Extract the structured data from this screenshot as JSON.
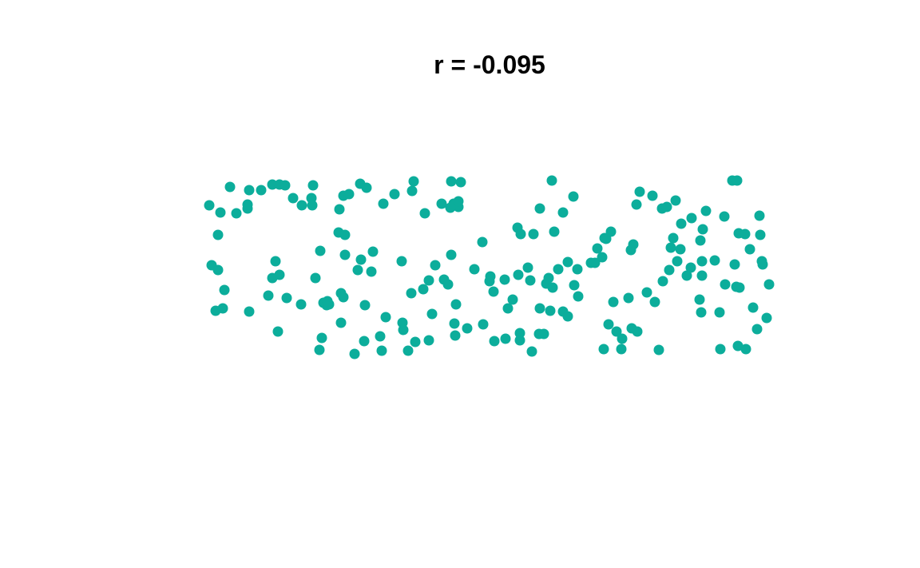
{
  "chart_data": {
    "type": "scatter",
    "title": "r = -0.095",
    "color": "#0cad9b",
    "x": [
      27,
      41,
      53,
      61,
      75,
      77,
      75,
      92,
      106,
      115,
      122,
      132,
      143,
      155,
      157,
      156,
      190,
      195,
      202,
      216,
      224,
      245,
      259,
      281,
      283,
      297,
      318,
      330,
      342,
      333,
      339,
      329,
      339,
      38,
      30,
      38,
      46,
      35,
      44,
      77,
      113,
      110,
      106,
      115,
      101,
      124,
      142,
      160,
      166,
      170,
      174,
      177,
      175,
      168,
      165,
      189,
      197,
      197,
      192,
      195,
      213,
      217,
      232,
      230,
      222,
      192,
      209,
      221,
      241,
      243,
      248,
      269,
      270,
      268,
      276,
      280,
      285,
      302,
      295,
      302,
      310,
      306,
      321,
      326,
      330,
      336,
      334,
      335,
      350,
      359,
      369,
      370,
      379,
      378,
      383,
      384,
      398,
      401,
      407,
      397,
      413,
      417,
      416,
      416,
      414,
      426,
      429,
      431,
      433,
      440,
      446,
      441,
      441,
      449,
      452,
      454,
      456,
      459,
      457,
      464,
      470,
      476,
      470,
      476,
      483,
      484,
      489,
      488,
      505,
      513,
      510,
      519,
      522,
      524,
      530,
      521,
      527,
      533,
      537,
      543,
      544,
      552,
      555,
      558,
      556,
      563,
      562,
      566,
      575,
      582,
      585,
      590,
      594,
      600,
      595,
      603,
      605,
      608,
      611,
      613,
      617,
      618,
      625,
      631,
      630,
      642,
      645,
      644,
      644,
      641,
      643,
      649,
      660,
      666,
      667,
      672,
      673,
      682,
      688,
      685,
      687,
      690,
      691,
      689,
      699,
      698,
      704,
      708,
      713,
      716,
      717,
      719,
      720,
      725,
      728
    ],
    "y": [
      331,
      322,
      354,
      321,
      327,
      350,
      332,
      350,
      357,
      357,
      356,
      340,
      331,
      340,
      356,
      331,
      326,
      343,
      345,
      358,
      353,
      333,
      345,
      349,
      361,
      321,
      333,
      361,
      360,
      333,
      329,
      328,
      336,
      294,
      256,
      250,
      225,
      199,
      202,
      198,
      173,
      261,
      240,
      244,
      218,
      215,
      207,
      240,
      274,
      209,
      206,
      207,
      211,
      165,
      150,
      297,
      294,
      269,
      221,
      216,
      250,
      263,
      273,
      248,
      206,
      184,
      145,
      161,
      167,
      149,
      191,
      184,
      175,
      261,
      149,
      221,
      160,
      162,
      226,
      237,
      256,
      195,
      238,
      232,
      269,
      207,
      183,
      168,
      177,
      251,
      285,
      182,
      242,
      236,
      223,
      161,
      164,
      202,
      213,
      238,
      303,
      295,
      171,
      162,
      244,
      253,
      237,
      148,
      295,
      170,
      170,
      327,
      202,
      233,
      240,
      199,
      362,
      298,
      228,
      251,
      322,
      260,
      198,
      192,
      342,
      231,
      217,
      251,
      259,
      277,
      259,
      266,
      290,
      289,
      298,
      151,
      182,
      210,
      173,
      151,
      164,
      215,
      275,
      282,
      177,
      173,
      332,
      348,
      222,
      343,
      210,
      150,
      327,
      329,
      236,
      250,
      278,
      290,
      337,
      261,
      276,
      308,
      243,
      315,
      253,
      287,
      301,
      261,
      243,
      213,
      197,
      324,
      262,
      197,
      151,
      317,
      232,
      362,
      362,
      257,
      229,
      296,
      228,
      155,
      151,
      295,
      276,
      203,
      176,
      318,
      294,
      261,
      257,
      190,
      232
    ],
    "xlim": [
      0,
      757
    ],
    "ylim": [
      0,
      506
    ]
  }
}
